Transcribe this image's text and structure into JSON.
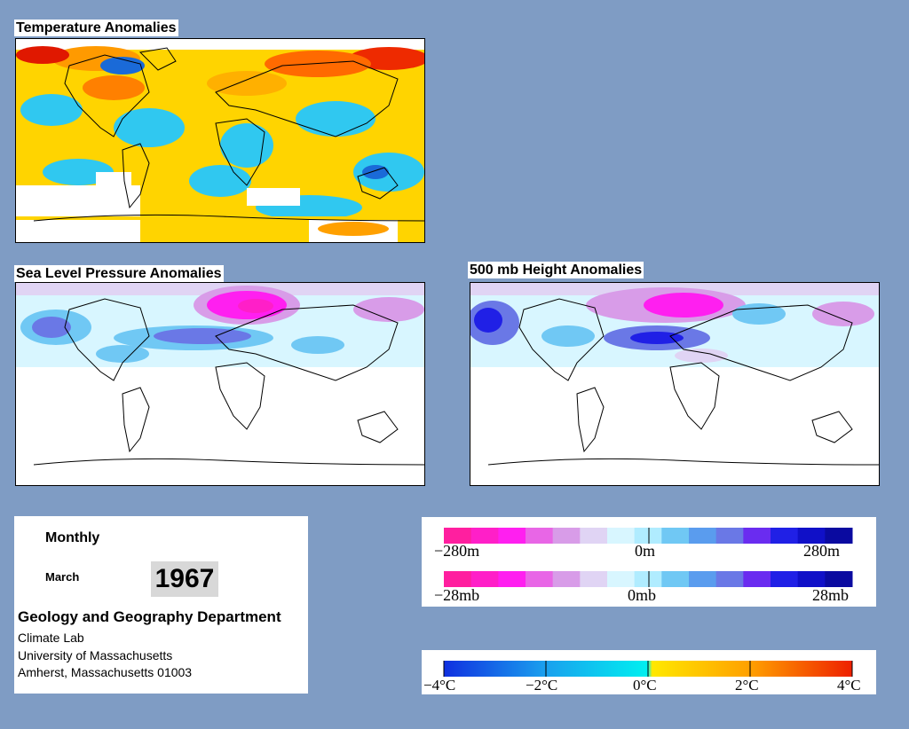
{
  "panels": {
    "temperature": {
      "title": "Temperature Anomalies"
    },
    "slp": {
      "title": "Sea Level Pressure Anomalies"
    },
    "height500": {
      "title": "500 mb Height Anomalies"
    }
  },
  "info": {
    "period": "Monthly",
    "month": "March",
    "year": "1967",
    "department": "Geology and Geography Department",
    "lab": "Climate Lab",
    "university": "University of Massachusetts",
    "address": "Amherst, Massachusetts 01003"
  },
  "legends": {
    "height": {
      "min": "−280m",
      "mid": "0m",
      "max": "280m",
      "colors": [
        "#ff1f9f",
        "#ff1fc8",
        "#ff1ff0",
        "#e866e6",
        "#d89ce8",
        "#e0d4f4",
        "#d8f6ff",
        "#b0ecff",
        "#70c8f4",
        "#5a9cee",
        "#6a78e6",
        "#6a2cf0",
        "#2020e6",
        "#1010c8",
        "#0a0aa0"
      ]
    },
    "pressure": {
      "min": "−28mb",
      "mid": "0mb",
      "max": "28mb",
      "colors": [
        "#ff1f9f",
        "#ff1fc8",
        "#ff1ff0",
        "#e866e6",
        "#d89ce8",
        "#e0d4f4",
        "#d8f6ff",
        "#b0ecff",
        "#70c8f4",
        "#5a9cee",
        "#6a78e6",
        "#6a2cf0",
        "#2020e6",
        "#1010c8",
        "#0a0aa0"
      ]
    },
    "temperature": {
      "labels": [
        "−4°C",
        "−2°C",
        "0°C",
        "2°C",
        "4°C"
      ]
    }
  }
}
